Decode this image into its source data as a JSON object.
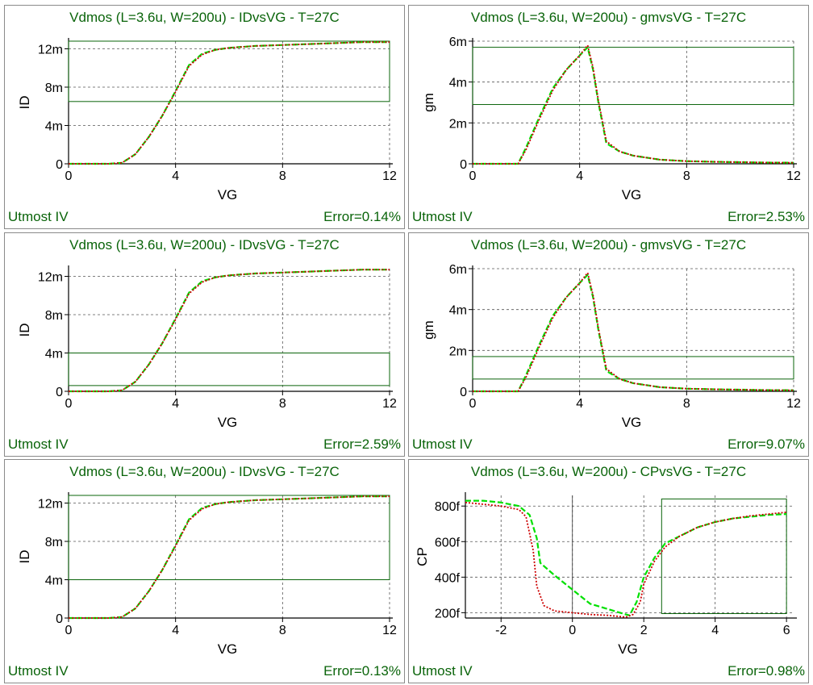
{
  "colors": {
    "title": "#0a640a",
    "measured": "#00e000",
    "simulated": "#cc0000",
    "box": "#0a640a",
    "grid": "#555555"
  },
  "footer": {
    "left": "Utmost IV"
  },
  "chart_data": [
    {
      "type": "line",
      "title": "Vdmos (L=3.6u, W=200u) - IDvsVG - T=27C",
      "xlabel": "VG",
      "ylabel": "ID",
      "xlim": [
        0,
        12
      ],
      "ylim": [
        0,
        0.0128
      ],
      "xticks": [
        0,
        4,
        8,
        12
      ],
      "xtick_labels": [
        "0",
        "4",
        "8",
        "12"
      ],
      "yticks": [
        0,
        0.004,
        0.008,
        0.012
      ],
      "ytick_labels": [
        "0",
        "4m",
        "8m",
        "12m"
      ],
      "grid": true,
      "fit_window": {
        "x": [
          0,
          12
        ],
        "y": [
          0.0065,
          0.0128
        ]
      },
      "error": "Error=0.14%",
      "series": [
        {
          "role": "measured",
          "x": [
            0,
            0.5,
            1,
            1.5,
            2,
            2.5,
            3,
            3.5,
            4,
            4.5,
            5,
            5.5,
            6,
            7,
            8,
            9,
            10,
            11,
            12
          ],
          "y": [
            0,
            0,
            0,
            0,
            0.0001,
            0.001,
            0.0028,
            0.005,
            0.0076,
            0.0103,
            0.0115,
            0.0119,
            0.0121,
            0.0123,
            0.0124,
            0.0125,
            0.0126,
            0.0127,
            0.0127
          ]
        },
        {
          "role": "simulated",
          "x": [
            0,
            0.5,
            1,
            1.5,
            2,
            2.5,
            3,
            3.5,
            4,
            4.5,
            5,
            5.5,
            6,
            7,
            8,
            9,
            10,
            11,
            12
          ],
          "y": [
            0,
            0,
            0,
            0,
            0.0001,
            0.001,
            0.0028,
            0.005,
            0.0075,
            0.0102,
            0.0114,
            0.0119,
            0.0121,
            0.0123,
            0.0124,
            0.0125,
            0.0126,
            0.0127,
            0.0127
          ]
        }
      ]
    },
    {
      "type": "line",
      "title": "Vdmos (L=3.6u, W=200u) - gmvsVG - T=27C",
      "xlabel": "VG",
      "ylabel": "gm",
      "xlim": [
        0,
        12
      ],
      "ylim": [
        0,
        0.006
      ],
      "xticks": [
        0,
        4,
        8,
        12
      ],
      "xtick_labels": [
        "0",
        "4",
        "8",
        "12"
      ],
      "yticks": [
        0,
        0.002,
        0.004,
        0.006
      ],
      "ytick_labels": [
        "0",
        "2m",
        "4m",
        "6m"
      ],
      "grid": true,
      "fit_window": {
        "x": [
          0,
          12
        ],
        "y": [
          0.0029,
          0.0057
        ]
      },
      "error": "Error=2.53%",
      "series": [
        {
          "role": "measured",
          "x": [
            0,
            1,
            1.7,
            2,
            2.5,
            3,
            3.5,
            4,
            4.3,
            4.5,
            4.7,
            5,
            5.5,
            6,
            7,
            8,
            9,
            10,
            11,
            12
          ],
          "y": [
            0,
            0,
            0,
            0.0008,
            0.0023,
            0.0037,
            0.0046,
            0.0053,
            0.0057,
            0.0046,
            0.003,
            0.001,
            0.0006,
            0.0004,
            0.0002,
            0.00013,
            0.0001,
            8e-05,
            6e-05,
            5e-05
          ]
        },
        {
          "role": "simulated",
          "x": [
            0,
            1,
            1.7,
            2,
            2.5,
            3,
            3.5,
            4,
            4.3,
            4.5,
            4.7,
            5,
            5.5,
            6,
            7,
            8,
            9,
            10,
            11,
            12
          ],
          "y": [
            0,
            0,
            0,
            0.0007,
            0.0022,
            0.0036,
            0.0046,
            0.0053,
            0.0058,
            0.0047,
            0.0031,
            0.0011,
            0.0006,
            0.0004,
            0.0002,
            0.00013,
            0.0001,
            8e-05,
            6e-05,
            5e-05
          ]
        }
      ]
    },
    {
      "type": "line",
      "title": "Vdmos (L=3.6u, W=200u) - IDvsVG - T=27C",
      "xlabel": "VG",
      "ylabel": "ID",
      "xlim": [
        0,
        12
      ],
      "ylim": [
        0,
        0.0128
      ],
      "xticks": [
        0,
        4,
        8,
        12
      ],
      "xtick_labels": [
        "0",
        "4",
        "8",
        "12"
      ],
      "yticks": [
        0,
        0.004,
        0.008,
        0.012
      ],
      "ytick_labels": [
        "0",
        "4m",
        "8m",
        "12m"
      ],
      "grid": true,
      "fit_window": {
        "x": [
          0,
          12
        ],
        "y": [
          0.0006,
          0.004
        ]
      },
      "error": "Error=2.59%",
      "series": [
        {
          "role": "measured",
          "x": [
            0,
            0.5,
            1,
            1.5,
            2,
            2.5,
            3,
            3.5,
            4,
            4.5,
            5,
            5.5,
            6,
            7,
            8,
            9,
            10,
            11,
            12
          ],
          "y": [
            0,
            0,
            0,
            0,
            0.0001,
            0.001,
            0.0028,
            0.005,
            0.0076,
            0.0103,
            0.0115,
            0.0119,
            0.0121,
            0.0123,
            0.0124,
            0.0125,
            0.0126,
            0.0127,
            0.0127
          ]
        },
        {
          "role": "simulated",
          "x": [
            0,
            0.5,
            1,
            1.5,
            2,
            2.5,
            3,
            3.5,
            4,
            4.5,
            5,
            5.5,
            6,
            7,
            8,
            9,
            10,
            11,
            12
          ],
          "y": [
            0,
            0,
            0,
            0,
            0.0001,
            0.001,
            0.0028,
            0.005,
            0.0075,
            0.0102,
            0.0114,
            0.0119,
            0.0121,
            0.0123,
            0.0124,
            0.0125,
            0.0126,
            0.0127,
            0.0127
          ]
        }
      ]
    },
    {
      "type": "line",
      "title": "Vdmos (L=3.6u, W=200u) - gmvsVG - T=27C",
      "xlabel": "VG",
      "ylabel": "gm",
      "xlim": [
        0,
        12
      ],
      "ylim": [
        0,
        0.006
      ],
      "xticks": [
        0,
        4,
        8,
        12
      ],
      "xtick_labels": [
        "0",
        "4",
        "8",
        "12"
      ],
      "yticks": [
        0,
        0.002,
        0.004,
        0.006
      ],
      "ytick_labels": [
        "0",
        "2m",
        "4m",
        "6m"
      ],
      "grid": true,
      "fit_window": {
        "x": [
          0,
          12
        ],
        "y": [
          0.0006,
          0.0017
        ]
      },
      "error": "Error=9.07%",
      "series": [
        {
          "role": "measured",
          "x": [
            0,
            1,
            1.7,
            2,
            2.5,
            3,
            3.5,
            4,
            4.3,
            4.5,
            4.7,
            5,
            5.5,
            6,
            7,
            8,
            9,
            10,
            11,
            12
          ],
          "y": [
            0,
            0,
            0,
            0.0008,
            0.0023,
            0.0037,
            0.0046,
            0.0053,
            0.0057,
            0.0046,
            0.003,
            0.001,
            0.0006,
            0.0004,
            0.0002,
            0.00013,
            0.0001,
            8e-05,
            6e-05,
            5e-05
          ]
        },
        {
          "role": "simulated",
          "x": [
            0,
            1,
            1.7,
            2,
            2.5,
            3,
            3.5,
            4,
            4.3,
            4.5,
            4.7,
            5,
            5.5,
            6,
            7,
            8,
            9,
            10,
            11,
            12
          ],
          "y": [
            0,
            0,
            0,
            0.0007,
            0.0022,
            0.0036,
            0.0046,
            0.0053,
            0.0058,
            0.0047,
            0.0031,
            0.0011,
            0.0006,
            0.0004,
            0.0002,
            0.00013,
            0.0001,
            8e-05,
            6e-05,
            5e-05
          ]
        }
      ]
    },
    {
      "type": "line",
      "title": "Vdmos (L=3.6u, W=200u) - IDvsVG - T=27C",
      "xlabel": "VG",
      "ylabel": "ID",
      "xlim": [
        0,
        12
      ],
      "ylim": [
        0,
        0.0128
      ],
      "xticks": [
        0,
        4,
        8,
        12
      ],
      "xtick_labels": [
        "0",
        "4",
        "8",
        "12"
      ],
      "yticks": [
        0,
        0.004,
        0.008,
        0.012
      ],
      "ytick_labels": [
        "0",
        "4m",
        "8m",
        "12m"
      ],
      "grid": true,
      "fit_window": {
        "x": [
          0,
          12
        ],
        "y": [
          0.004,
          0.0128
        ]
      },
      "error": "Error=0.13%",
      "series": [
        {
          "role": "measured",
          "x": [
            0,
            0.5,
            1,
            1.5,
            2,
            2.5,
            3,
            3.5,
            4,
            4.5,
            5,
            5.5,
            6,
            7,
            8,
            9,
            10,
            11,
            12
          ],
          "y": [
            0,
            0,
            0,
            0,
            0.0001,
            0.001,
            0.0028,
            0.005,
            0.0076,
            0.0103,
            0.0115,
            0.0119,
            0.0121,
            0.0123,
            0.0124,
            0.0125,
            0.0126,
            0.0127,
            0.0127
          ]
        },
        {
          "role": "simulated",
          "x": [
            0,
            0.5,
            1,
            1.5,
            2,
            2.5,
            3,
            3.5,
            4,
            4.5,
            5,
            5.5,
            6,
            7,
            8,
            9,
            10,
            11,
            12
          ],
          "y": [
            0,
            0,
            0,
            0,
            0.0001,
            0.001,
            0.0028,
            0.005,
            0.0075,
            0.0102,
            0.0114,
            0.0119,
            0.0121,
            0.0123,
            0.0124,
            0.0125,
            0.0126,
            0.0127,
            0.0127
          ]
        }
      ]
    },
    {
      "type": "line",
      "title": "Vdmos (L=3.6u, W=200u) - CPvsVG - T=27C",
      "xlabel": "VG",
      "ylabel": "CP",
      "xlim": [
        -3,
        6.2
      ],
      "ylim": [
        1.7e-13,
        8.6e-13
      ],
      "xticks": [
        -2,
        0,
        2,
        4,
        6
      ],
      "xtick_labels": [
        "-2",
        "0",
        "2",
        "4",
        "6"
      ],
      "yticks": [
        2e-13,
        4e-13,
        6e-13,
        8e-13
      ],
      "ytick_labels": [
        "200f",
        "400f",
        "600f",
        "800f"
      ],
      "grid": true,
      "fit_window": {
        "x": [
          2.5,
          6
        ],
        "y": [
          1.95e-13,
          8.4e-13
        ]
      },
      "error": "Error=0.98%",
      "series": [
        {
          "role": "measured",
          "x": [
            -3,
            -2.5,
            -2,
            -1.5,
            -1.2,
            -1.0,
            -0.9,
            -0.5,
            0,
            0.5,
            1,
            1.5,
            1.6,
            1.8,
            2,
            2.3,
            2.6,
            3,
            3.5,
            4,
            4.5,
            5,
            5.5,
            6
          ],
          "y": [
            8.3e-13,
            8.3e-13,
            8.2e-13,
            8e-13,
            7.5e-13,
            6.2e-13,
            4.8e-13,
            4.1e-13,
            3.3e-13,
            2.5e-13,
            2.2e-13,
            1.9e-13,
            1.85e-13,
            2.6e-13,
            4e-13,
            5.1e-13,
            5.9e-13,
            6.3e-13,
            6.8e-13,
            7.1e-13,
            7.3e-13,
            7.4e-13,
            7.5e-13,
            7.55e-13
          ]
        },
        {
          "role": "simulated",
          "x": [
            -3,
            -2.5,
            -2,
            -1.5,
            -1.3,
            -1.1,
            -1.0,
            -0.8,
            -0.5,
            0,
            0.5,
            1,
            1.5,
            1.7,
            1.9,
            2,
            2.3,
            2.6,
            3,
            3.5,
            4,
            4.5,
            5,
            5.5,
            6
          ],
          "y": [
            8.2e-13,
            8.1e-13,
            8e-13,
            7.8e-13,
            7.4e-13,
            5.5e-13,
            3.5e-13,
            2.4e-13,
            2.1e-13,
            2e-13,
            1.9e-13,
            1.85e-13,
            1.75e-13,
            1.9e-13,
            2.6e-13,
            3.6e-13,
            4.9e-13,
            5.7e-13,
            6.3e-13,
            6.8e-13,
            7.1e-13,
            7.3e-13,
            7.45e-13,
            7.55e-13,
            7.65e-13
          ]
        }
      ]
    }
  ]
}
